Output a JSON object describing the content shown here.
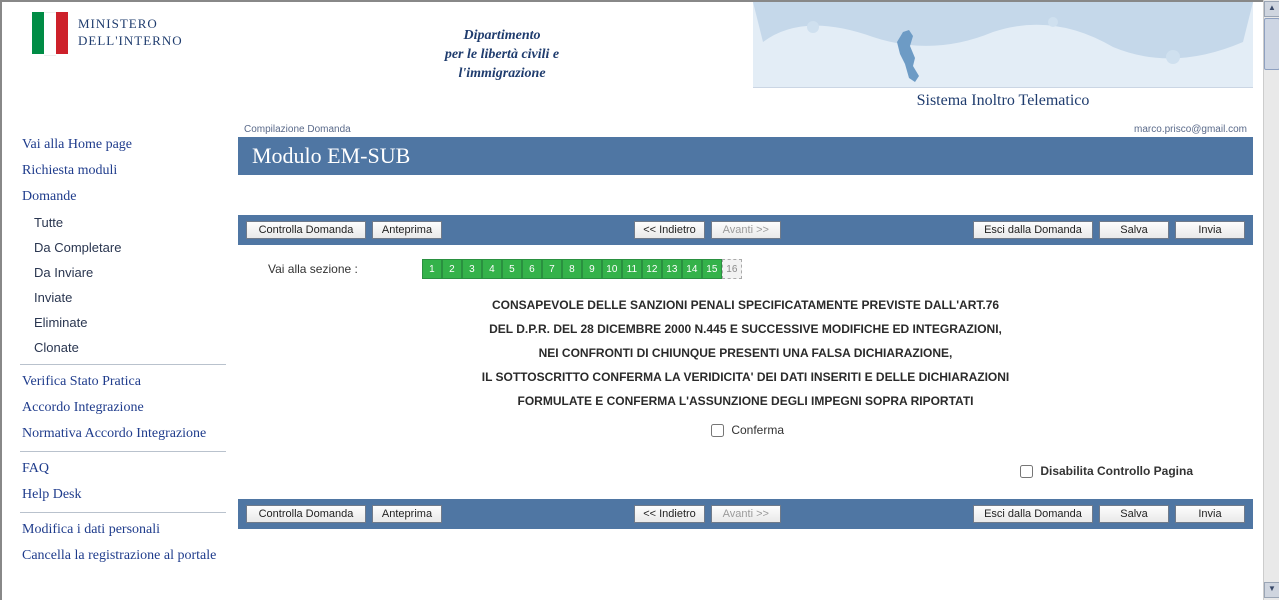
{
  "header": {
    "ministry_line1": "MINISTERO",
    "ministry_line2": "DELL'INTERNO",
    "department": "Dipartimento\nper le libertà civili e\nl'immigrazione",
    "system_title": "Sistema Inoltro Telematico",
    "flag_colors": {
      "green": "#008c45",
      "white": "#ffffff",
      "red": "#cd212a"
    }
  },
  "sidebar": {
    "items": [
      {
        "label": "Vai alla Home page",
        "sub": false
      },
      {
        "label": "Richiesta moduli",
        "sub": false
      },
      {
        "label": "Domande",
        "sub": false
      },
      {
        "label": "Tutte",
        "sub": true
      },
      {
        "label": "Da Completare",
        "sub": true
      },
      {
        "label": "Da Inviare",
        "sub": true
      },
      {
        "label": "Inviate",
        "sub": true
      },
      {
        "label": "Eliminate",
        "sub": true
      },
      {
        "label": "Clonate",
        "sub": true
      }
    ],
    "group2": [
      {
        "label": "Verifica Stato Pratica"
      },
      {
        "label": "Accordo Integrazione"
      },
      {
        "label": "Normativa Accordo Integrazione"
      }
    ],
    "group3": [
      {
        "label": "FAQ"
      },
      {
        "label": "Help Desk"
      }
    ],
    "group4": [
      {
        "label": "Modifica i dati personali"
      },
      {
        "label": "Cancella la registrazione al portale"
      }
    ]
  },
  "main": {
    "breadcrumb": "Compilazione Domanda",
    "user_email": "marco.prisco@gmail.com",
    "title": "Modulo EM-SUB",
    "buttons": {
      "controlla": "Controlla Domanda",
      "anteprima": "Anteprima",
      "indietro": "<< Indietro",
      "avanti": "Avanti >>",
      "esci": "Esci dalla Domanda",
      "salva": "Salva",
      "invia": "Invia"
    },
    "section_label": "Vai alla sezione :",
    "pages": [
      "1",
      "2",
      "3",
      "4",
      "5",
      "6",
      "7",
      "8",
      "9",
      "10",
      "11",
      "12",
      "13",
      "14",
      "15"
    ],
    "current_page": "16",
    "declaration_lines": [
      "CONSAPEVOLE DELLE SANZIONI PENALI SPECIFICATAMENTE PREVISTE DALL'ART.76",
      "DEL D.P.R. DEL 28 DICEMBRE 2000 N.445 E SUCCESSIVE MODIFICHE ED INTEGRAZIONI,",
      "NEI CONFRONTI DI CHIUNQUE PRESENTI UNA FALSA DICHIARAZIONE,",
      "IL SOTTOSCRITTO CONFERMA LA VERIDICITA' DEI DATI INSERITI E DELLE DICHIARAZIONI",
      "FORMULATE E CONFERMA L'ASSUNZIONE DEGLI IMPEGNI SOPRA RIPORTATI"
    ],
    "conferma_label": "Conferma",
    "disabilita_label": "Disabilita Controllo Pagina"
  },
  "colors": {
    "titlebar_bg": "#4f76a3",
    "page_green": "#34b24a",
    "link_color": "#1f3c8c"
  }
}
